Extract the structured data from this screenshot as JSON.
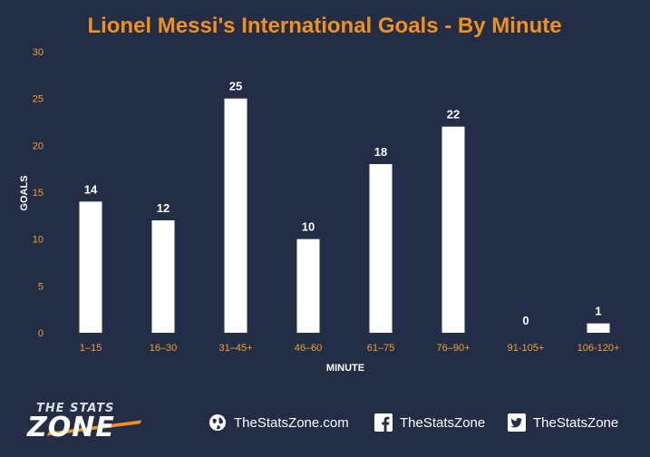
{
  "chart_data": {
    "type": "bar",
    "title": "Lionel Messi's International Goals - By Minute",
    "xlabel": "MINUTE",
    "ylabel": "GOALS",
    "categories": [
      "1–15",
      "16–30",
      "31–45+",
      "46–60",
      "61–75",
      "76–90+",
      "91-105+",
      "106-120+"
    ],
    "values": [
      14,
      12,
      25,
      10,
      18,
      22,
      0,
      1
    ],
    "ylim": [
      0,
      30
    ],
    "yticks": [
      0,
      5,
      10,
      15,
      20,
      25,
      30
    ],
    "grid": false,
    "legend": "none"
  },
  "colors": {
    "background": "#232d45",
    "bar": "#ffffff",
    "title": "#f0901e",
    "tick_label": "#f0a030",
    "axis_label": "#ffffff",
    "data_label": "#ffffff"
  },
  "footer": {
    "logo_text_top": "THE STATS",
    "logo_text_bottom": "ZONE",
    "website": "TheStatsZone.com",
    "facebook": "TheStatsZone",
    "twitter": "TheStatsZone",
    "website_icon": "globe-icon",
    "facebook_icon": "facebook-icon",
    "twitter_icon": "twitter-icon"
  }
}
